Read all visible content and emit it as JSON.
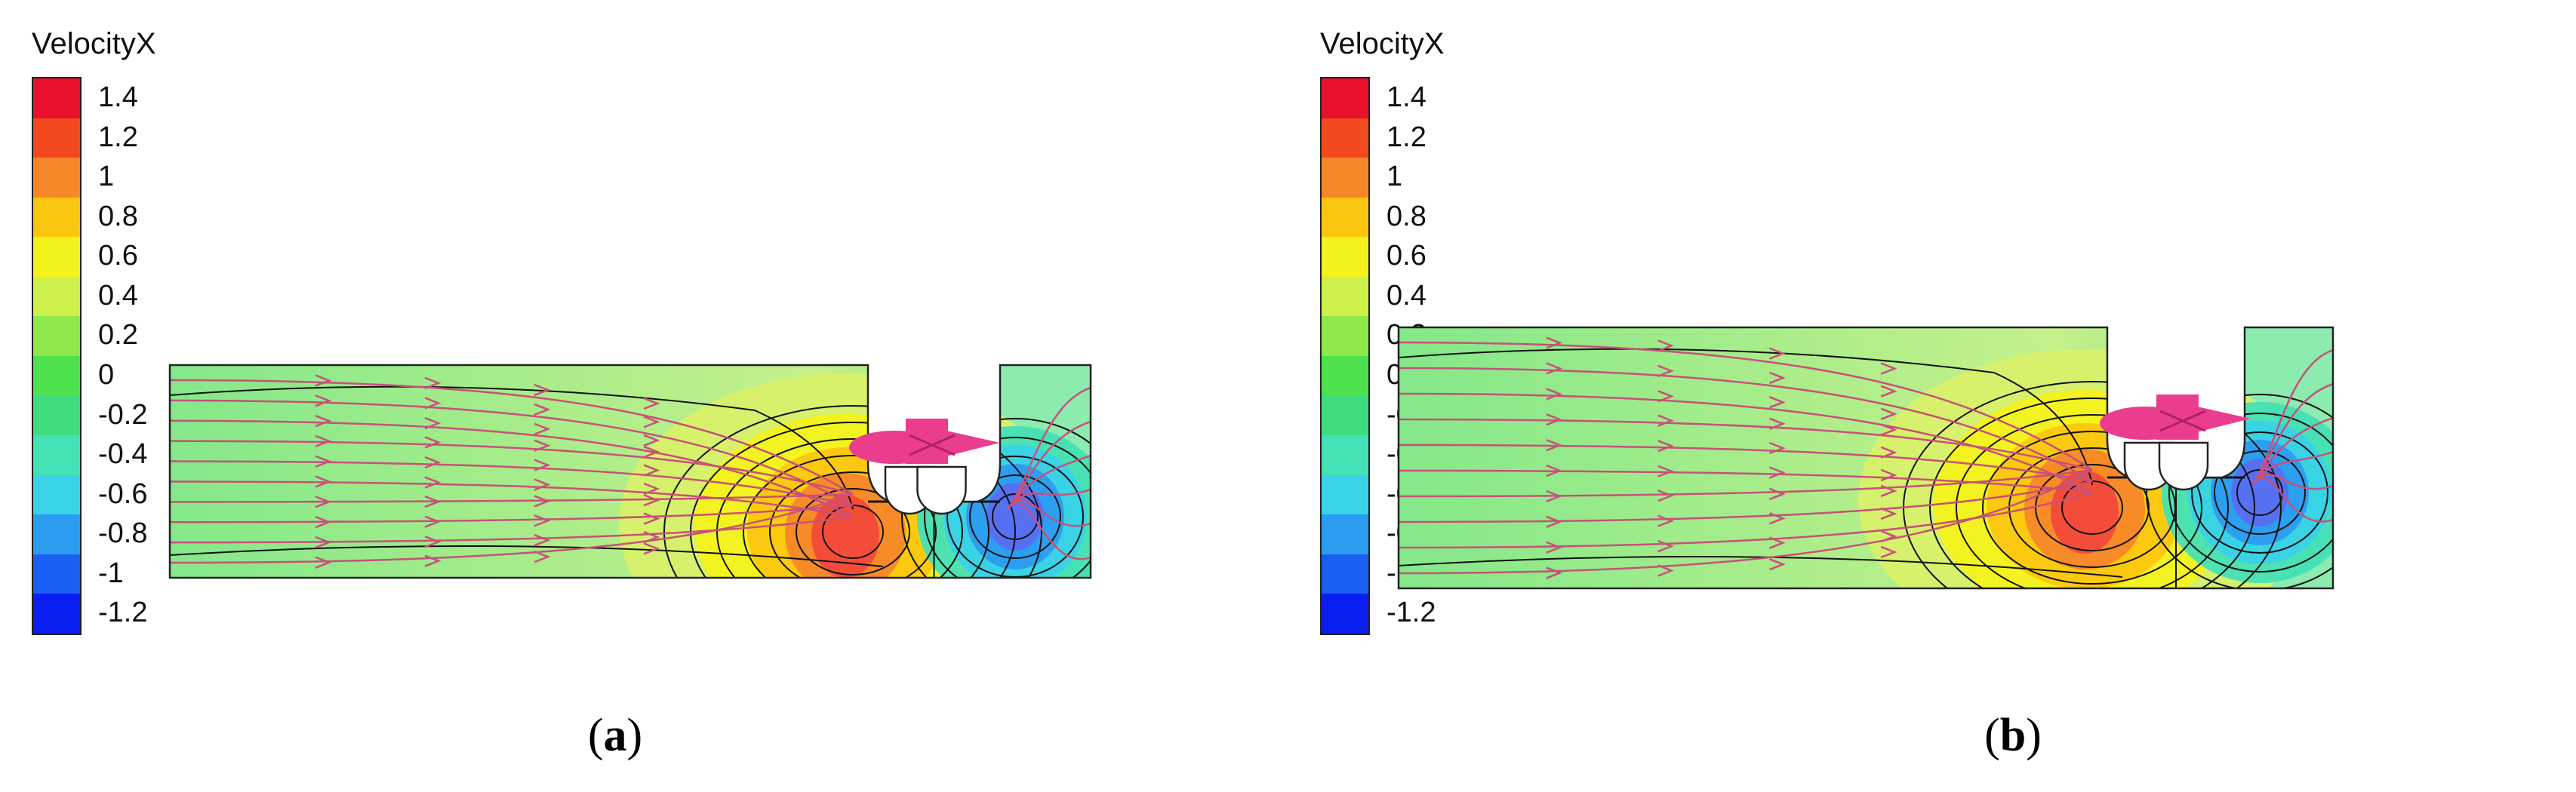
{
  "figure": {
    "panels": [
      {
        "id": "a",
        "legend_title": "VelocityX",
        "caption_label": "a",
        "caption_open": "(",
        "caption_close": ")",
        "variant": "narrow-gap"
      },
      {
        "id": "b",
        "legend_title": "VelocityX",
        "caption_label": "b",
        "caption_open": "(",
        "caption_close": ")",
        "variant": "wide-gap"
      }
    ],
    "legend_levels": [
      "1.4",
      "1.2",
      "1",
      "0.8",
      "0.6",
      "0.4",
      "0.2",
      "0",
      "-0.2",
      "-0.4",
      "-0.6",
      "-0.8",
      "-1",
      "-1.2"
    ],
    "legend_colors": [
      "#e8102a",
      "#f24a1e",
      "#f7882a",
      "#fbc60f",
      "#f4f21d",
      "#cdf04a",
      "#8ee84a",
      "#4fe04e",
      "#3fdc7e",
      "#44e0b6",
      "#39d2e8",
      "#2b9cf0",
      "#1a5ef2",
      "#0b1ef0"
    ],
    "colors": {
      "field_background": "#84e88a",
      "field_light": "#c4f08a",
      "streamline": "#c8507a",
      "object": "#ea3d8e",
      "hot_core": "#f24a3a",
      "cold_core": "#5a6ef2"
    }
  }
}
